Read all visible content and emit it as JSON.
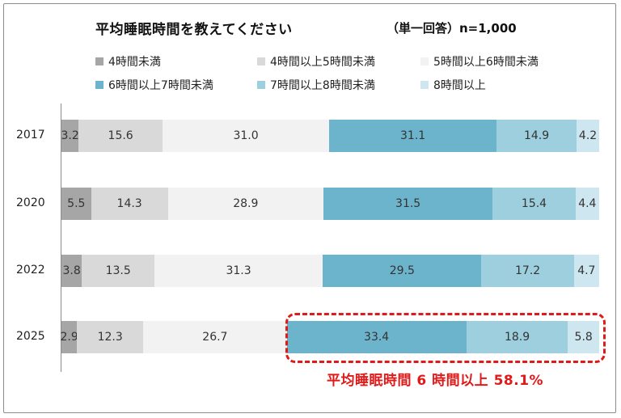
{
  "chart_data": {
    "type": "bar",
    "orientation": "horizontal",
    "stacked": true,
    "normalized_percent": true,
    "title": "平均睡眠時間を教えてください",
    "subtitle": "（単一回答）n=1,000",
    "categories": [
      "2017",
      "2020",
      "2022",
      "2025"
    ],
    "series": [
      {
        "name": "4時間未満",
        "color": "#a6a6a6",
        "values": [
          3.2,
          5.5,
          3.8,
          2.9
        ]
      },
      {
        "name": "4時間以上5時間未満",
        "color": "#d9d9d9",
        "values": [
          15.6,
          14.3,
          13.5,
          12.3
        ]
      },
      {
        "name": "5時間以上6時間未満",
        "color": "#f2f2f2",
        "values": [
          31.0,
          28.9,
          31.3,
          26.7
        ]
      },
      {
        "name": "6時間以上7時間未満",
        "color": "#6cb4cc",
        "values": [
          31.1,
          31.5,
          29.5,
          33.4
        ]
      },
      {
        "name": "7時間以上8時間未満",
        "color": "#9ecfdf",
        "values": [
          14.9,
          15.4,
          17.2,
          18.9
        ]
      },
      {
        "name": "8時間以上",
        "color": "#cde6ef",
        "values": [
          4.2,
          4.4,
          4.7,
          5.8
        ]
      }
    ],
    "value_labels": [
      [
        "3.2",
        "15.6",
        "31.0",
        "31.1",
        "14.9",
        "4.2"
      ],
      [
        "5.5",
        "14.3",
        "28.9",
        "31.5",
        "15.4",
        "4.4"
      ],
      [
        "3.8",
        "13.5",
        "31.3",
        "29.5",
        "17.2",
        "4.7"
      ],
      [
        "2.9",
        "12.3",
        "26.7",
        "33.4",
        "18.9",
        "5.8"
      ]
    ],
    "xlim": [
      0,
      100
    ],
    "legend_position": "top",
    "annotation": "平均睡眠時間 6 時間以上 58.1%",
    "highlight_color": "#e01919"
  }
}
